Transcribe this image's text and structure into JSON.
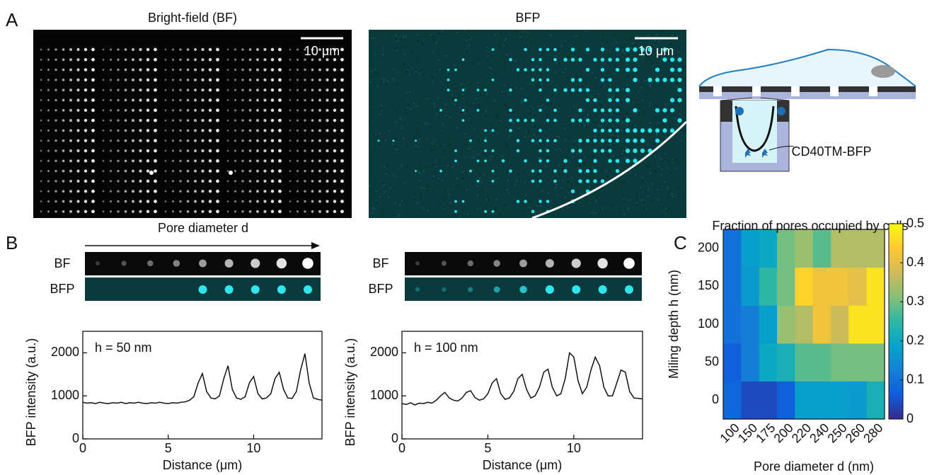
{
  "figure": {
    "panels": [
      "A",
      "B",
      "C"
    ],
    "images": [
      {
        "title": "Bright-field (BF)",
        "scale_bar": "10 μm"
      },
      {
        "title": "BFP",
        "scale_bar": "10 μm"
      }
    ],
    "strip_axis": "Pore diameter d",
    "strip_labels": [
      "BF",
      "BFP"
    ],
    "diagram_label": "CD40TM-BFP"
  },
  "chart_data": [
    {
      "type": "line",
      "annotation": "h = 50 nm",
      "x_label": "Distance (μm)",
      "y_label": "BFP intensity (a.u.)",
      "color": "#111111",
      "x": [
        0,
        0.25,
        0.5,
        0.75,
        1,
        1.25,
        1.5,
        1.75,
        2,
        2.25,
        2.5,
        2.75,
        3,
        3.25,
        3.5,
        3.75,
        4,
        4.25,
        4.5,
        4.75,
        5,
        5.25,
        5.5,
        5.75,
        6,
        6.25,
        6.5,
        6.75,
        7,
        7.25,
        7.5,
        7.75,
        8,
        8.25,
        8.5,
        8.75,
        9,
        9.25,
        9.5,
        9.75,
        10,
        10.25,
        10.5,
        10.75,
        11,
        11.25,
        11.5,
        11.75,
        12,
        12.25,
        12.5,
        12.75,
        13,
        13.25,
        13.5,
        13.75,
        14
      ],
      "values": [
        850,
        830,
        840,
        820,
        850,
        830,
        820,
        840,
        830,
        850,
        820,
        840,
        830,
        850,
        830,
        820,
        840,
        830,
        850,
        830,
        820,
        840,
        830,
        850,
        860,
        900,
        980,
        1300,
        1520,
        1100,
        950,
        930,
        1000,
        1400,
        1700,
        1150,
        950,
        920,
        980,
        1300,
        1450,
        1050,
        930,
        950,
        1050,
        1400,
        1550,
        1150,
        950,
        940,
        1100,
        1600,
        1980,
        1300,
        950,
        920,
        900
      ],
      "xlim": [
        0,
        14
      ],
      "xticks": [
        0,
        5,
        10
      ],
      "ylim": [
        0,
        2500
      ],
      "yticks": [
        0,
        1000,
        2000
      ]
    },
    {
      "type": "line",
      "annotation": "h = 100 nm",
      "x_label": "Distance (μm)",
      "y_label": "BFP intensity (a.u.)",
      "color": "#111111",
      "x": [
        0,
        0.25,
        0.5,
        0.75,
        1,
        1.25,
        1.5,
        1.75,
        2,
        2.25,
        2.5,
        2.75,
        3,
        3.25,
        3.5,
        3.75,
        4,
        4.25,
        4.5,
        4.75,
        5,
        5.25,
        5.5,
        5.75,
        6,
        6.25,
        6.5,
        6.75,
        7,
        7.25,
        7.5,
        7.75,
        8,
        8.25,
        8.5,
        8.75,
        9,
        9.25,
        9.5,
        9.75,
        10,
        10.25,
        10.5,
        10.75,
        11,
        11.25,
        11.5,
        11.75,
        12,
        12.25,
        12.5,
        12.75,
        13,
        13.25,
        13.5,
        13.75,
        14
      ],
      "values": [
        820,
        800,
        840,
        790,
        830,
        820,
        850,
        830,
        900,
        1000,
        1080,
        950,
        900,
        880,
        950,
        1080,
        1120,
        960,
        900,
        930,
        1050,
        1300,
        1400,
        1050,
        920,
        950,
        1100,
        1400,
        1500,
        1150,
        950,
        1000,
        1200,
        1550,
        1620,
        1200,
        1000,
        1050,
        1400,
        2000,
        1900,
        1350,
        1050,
        1200,
        1600,
        1900,
        1700,
        1200,
        1000,
        1000,
        1300,
        1600,
        1550,
        1100,
        950,
        940,
        930
      ],
      "xlim": [
        0,
        14
      ],
      "xticks": [
        0,
        5,
        10
      ],
      "ylim": [
        0,
        2500
      ],
      "yticks": [
        0,
        1000,
        2000
      ]
    },
    {
      "type": "heatmap",
      "title": "Fraction of pores occupied by cells",
      "x_label": "Pore diameter d (nm)",
      "y_label": "Miling depth h (nm)",
      "x_categories": [
        "100",
        "150",
        "175",
        "200",
        "220",
        "240",
        "250",
        "260",
        "280"
      ],
      "y_categories": [
        "0",
        "50",
        "100",
        "150",
        "200"
      ],
      "values": [
        [
          0.08,
          0.04,
          0.04,
          0.07,
          0.18,
          0.18,
          0.18,
          0.17,
          0.22
        ],
        [
          0.07,
          0.12,
          0.2,
          0.22,
          0.28,
          0.28,
          0.3,
          0.3,
          0.3
        ],
        [
          0.1,
          0.12,
          0.18,
          0.33,
          0.35,
          0.42,
          0.37,
          0.47,
          0.47
        ],
        [
          0.1,
          0.17,
          0.25,
          0.3,
          0.45,
          0.42,
          0.42,
          0.4,
          0.47
        ],
        [
          0.1,
          0.18,
          0.2,
          0.3,
          0.33,
          0.28,
          0.35,
          0.35,
          0.35
        ]
      ],
      "clim": [
        0,
        0.5
      ],
      "cticks": [
        0,
        0.1,
        0.2,
        0.3,
        0.4,
        0.5
      ],
      "colormap": [
        "#352a87",
        "#0f5cdd",
        "#1481d6",
        "#06a4ca",
        "#2eb7a4",
        "#87bf77",
        "#d1bb59",
        "#fec832",
        "#f9fb0e"
      ]
    }
  ]
}
